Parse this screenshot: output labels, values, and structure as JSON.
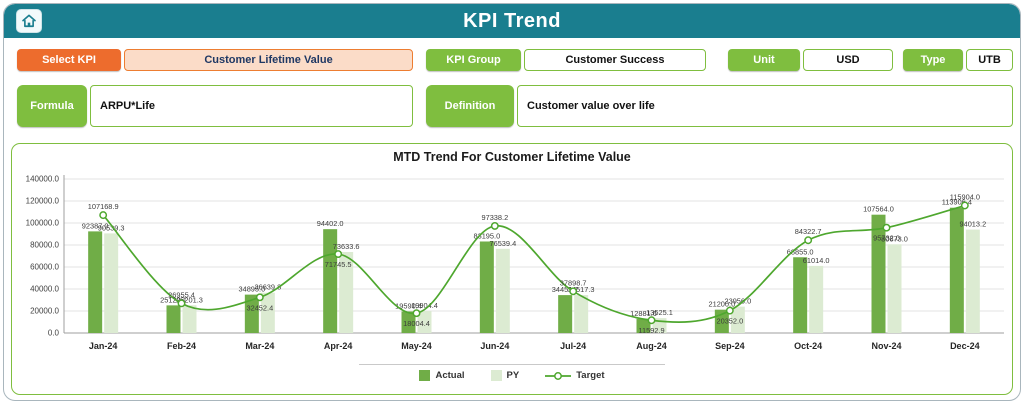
{
  "header": {
    "title": "KPI Trend"
  },
  "fields": {
    "select_kpi": {
      "label": "Select KPI",
      "value": "Customer Lifetime Value"
    },
    "kpi_group": {
      "label": "KPI Group",
      "value": "Customer Success"
    },
    "unit": {
      "label": "Unit",
      "value": "USD"
    },
    "type": {
      "label": "Type",
      "value": "UTB"
    },
    "formula": {
      "label": "Formula",
      "value": "ARPU*Life"
    },
    "definition": {
      "label": "Definition",
      "value": "Customer value over life"
    }
  },
  "colors": {
    "header_teal": "#1A7E8F",
    "label_green": "#7FBE3F",
    "select_orange": "#ED6C2D",
    "select_peach_bg": "#FBDCC8",
    "select_border": "#ED7D31",
    "bar_actual": "#70AD47",
    "bar_py": "#DCEBD2",
    "line_target": "#4EA72E"
  },
  "chart_data": {
    "type": "bar",
    "subtype": "combo bar + line",
    "title": "MTD Trend For Customer Lifetime Value",
    "categories": [
      "Jan-24",
      "Feb-24",
      "Mar-24",
      "Apr-24",
      "May-24",
      "Jun-24",
      "Jul-24",
      "Aug-24",
      "Sep-24",
      "Oct-24",
      "Nov-24",
      "Dec-24"
    ],
    "series": [
      {
        "name": "Actual",
        "kind": "bar",
        "color": "#70AD47",
        "values": [
          92387.0,
          25120.1,
          34895.0,
          94402.0,
          19590.4,
          83195.0,
          34451.7,
          12881.6,
          21200.0,
          68855.0,
          107564.0,
          113906.4
        ]
      },
      {
        "name": "PY",
        "kind": "bar",
        "color": "#DCEBD2",
        "values": [
          90539.3,
          25201.3,
          36639.8,
          73633.6,
          19904.4,
          76539.4,
          34517.3,
          13525.1,
          23956.0,
          61014.0,
          80673.0,
          94013.2
        ]
      },
      {
        "name": "Target",
        "kind": "line",
        "color": "#4EA72E",
        "values": [
          107168.9,
          26955.4,
          32452.4,
          71745.5,
          18004.4,
          97338.2,
          37898.7,
          11592.9,
          20352.0,
          84322.7,
          95732.0,
          115904.0
        ]
      }
    ],
    "ylim": [
      0,
      140000
    ],
    "ytick_step": 20000,
    "ytick_format": "one_decimal",
    "grid": true,
    "legend_position": "bottom"
  }
}
